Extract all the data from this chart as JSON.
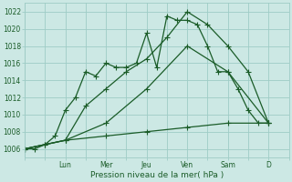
{
  "title": "",
  "xlabel": "Pression niveau de la mer( hPa )",
  "ylabel": "",
  "bg_color": "#cce8e4",
  "grid_color": "#9eccc6",
  "line_color": "#1a5c28",
  "ylim": [
    1005,
    1023
  ],
  "yticks": [
    1006,
    1008,
    1010,
    1012,
    1014,
    1016,
    1018,
    1020,
    1022
  ],
  "day_labels": [
    "Lun",
    "Mer",
    "Jeu",
    "Ven",
    "Sam",
    "D"
  ],
  "day_positions": [
    2,
    4,
    6,
    8,
    10,
    12
  ],
  "xlim": [
    0,
    13
  ],
  "series": [
    {
      "x": [
        0,
        0.5,
        1,
        1.5,
        2,
        2.5,
        3,
        3.5,
        4,
        4.5,
        5,
        5.5,
        6,
        6.5,
        7,
        7.5,
        8,
        8.5,
        9,
        9.5,
        10,
        10.5,
        11,
        11.5,
        12
      ],
      "y": [
        1006,
        1006,
        1006.5,
        1007.5,
        1010.5,
        1012,
        1015,
        1014.5,
        1016,
        1015.5,
        1015.5,
        1016,
        1019.5,
        1015.5,
        1021.5,
        1021,
        1021,
        1020.5,
        1018,
        1015,
        1015,
        1013,
        1010.5,
        1009,
        1009
      ]
    },
    {
      "x": [
        0,
        1,
        2,
        3,
        4,
        5,
        6,
        7,
        8,
        9,
        10,
        11,
        12
      ],
      "y": [
        1006,
        1006.5,
        1007,
        1011,
        1013,
        1015,
        1016.5,
        1019,
        1022,
        1020.5,
        1018,
        1015,
        1009
      ]
    },
    {
      "x": [
        0,
        2,
        4,
        6,
        8,
        10,
        12
      ],
      "y": [
        1006,
        1007,
        1009,
        1013,
        1018,
        1015,
        1009
      ]
    },
    {
      "x": [
        0,
        2,
        4,
        6,
        8,
        10,
        12
      ],
      "y": [
        1006,
        1007,
        1007.5,
        1008,
        1008.5,
        1009,
        1009
      ]
    }
  ],
  "marker": "+",
  "markersize": 4,
  "linewidth": 0.9,
  "tick_labelsize": 5.5,
  "xlabel_fontsize": 6.5
}
